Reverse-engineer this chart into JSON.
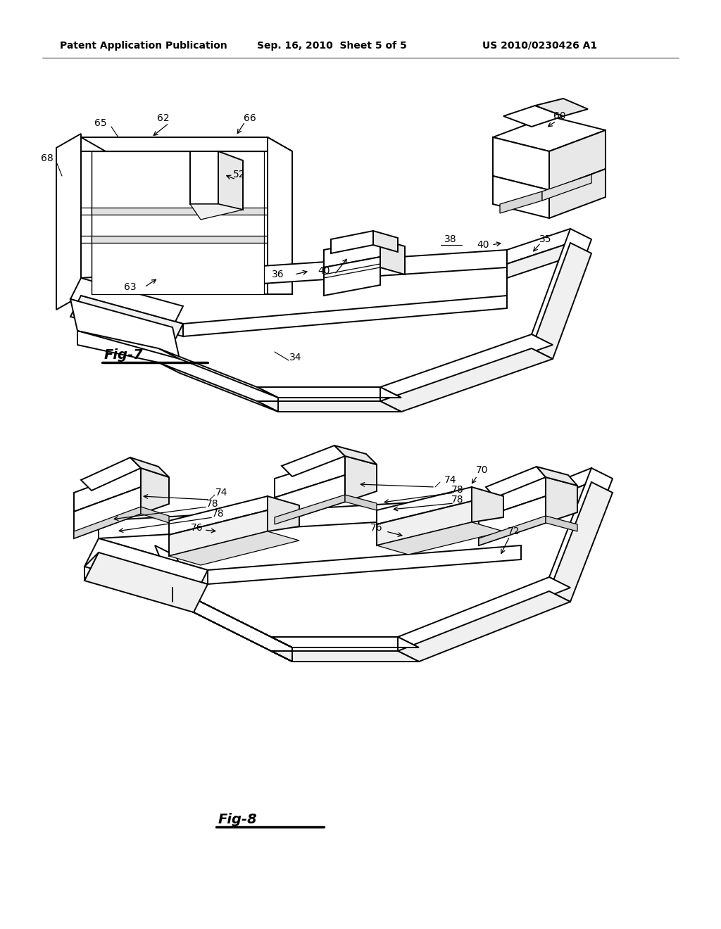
{
  "bg_color": "#ffffff",
  "line_color": "#000000",
  "header_text": "Patent Application Publication",
  "header_date": "Sep. 16, 2010  Sheet 5 of 5",
  "header_patent": "US 2010/0230426 A1",
  "fig7_label": "Fig-7",
  "fig8_label": "Fig-8",
  "lw": 1.4,
  "lw_thin": 0.9,
  "fs_ref": 10,
  "fs_label": 14,
  "fs_header": 10
}
